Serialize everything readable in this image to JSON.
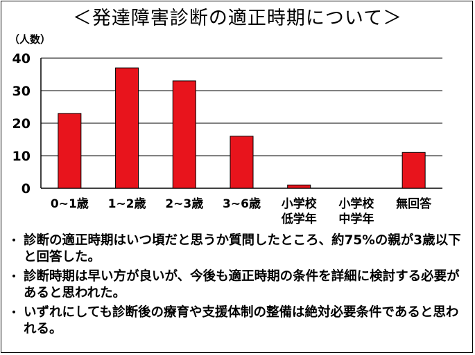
{
  "title": "＜発達障害診断の適正時期について＞",
  "chart_data": {
    "type": "bar",
    "unit_label": "（人数）",
    "categories": [
      [
        "0~1歳"
      ],
      [
        "1~2歳"
      ],
      [
        "2~3歳"
      ],
      [
        "3~6歳"
      ],
      [
        "小学校",
        "低学年"
      ],
      [
        "小学校",
        "中学年"
      ],
      [
        "無回答"
      ]
    ],
    "values": [
      23,
      37,
      33,
      16,
      1,
      0,
      11
    ],
    "yticks": [
      0,
      10,
      20,
      30,
      40
    ],
    "ylim": [
      0,
      40
    ],
    "bar_color": "#e8141c",
    "grid": true
  },
  "notes": [
    {
      "bullet": "・",
      "text": "診断の適正時期はいつ頃だと思うか質問したところ、約75%の親が3歳以下と回答した。"
    },
    {
      "bullet": "・",
      "text": "診断時期は早い方が良いが、今後も適正時期の条件を詳細に検討する必要があると思われた。"
    },
    {
      "bullet": "・",
      "text": "いずれにしても診断後の療育や支援体制の整備は絶対必要条件であると思われる。"
    }
  ]
}
